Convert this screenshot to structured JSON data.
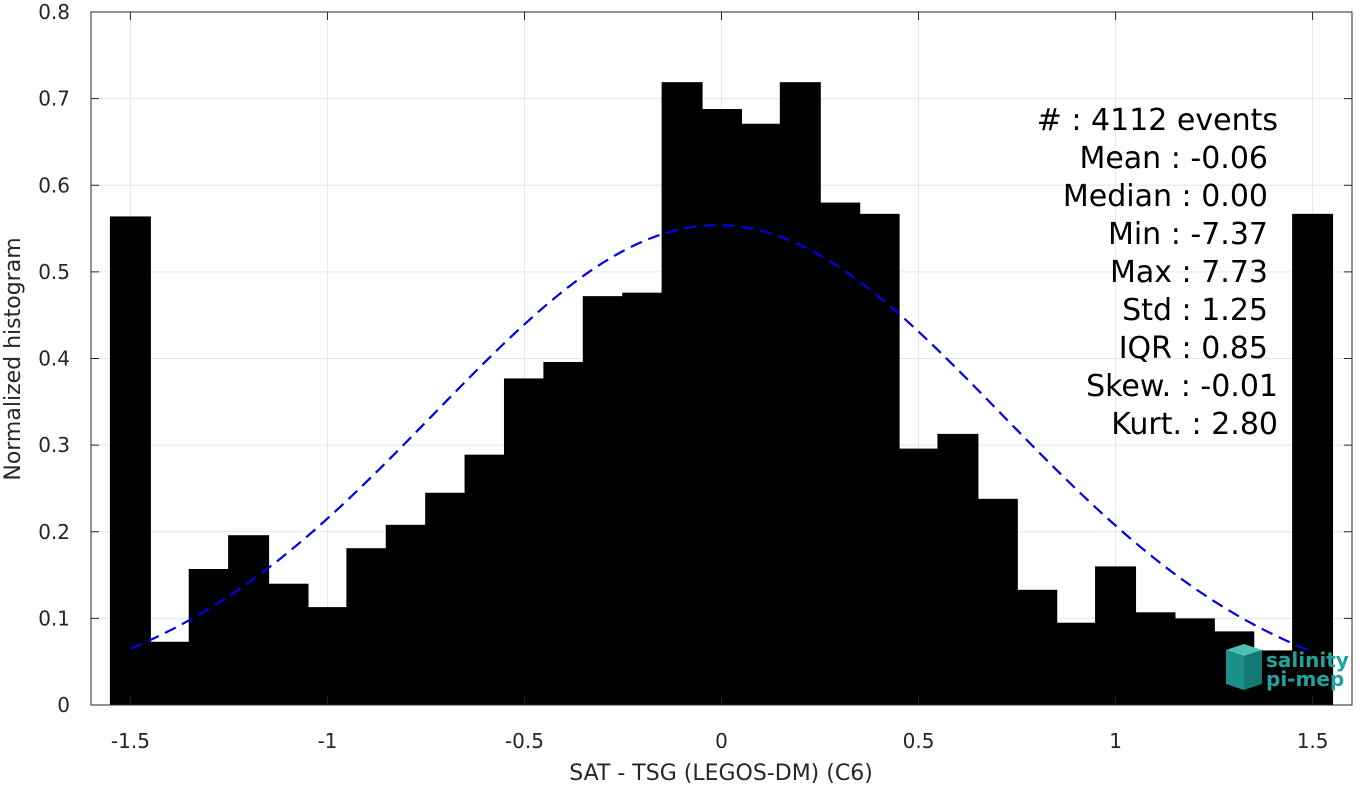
{
  "chart_data": {
    "type": "bar",
    "xlabel": "SAT - TSG (LEGOS-DM) (C6)",
    "ylabel": "Normalized histogram",
    "xlim": [
      -1.6,
      1.6
    ],
    "ylim": [
      0,
      0.8
    ],
    "grid": true,
    "x_ticks": [
      -1.5,
      -1,
      -0.5,
      0,
      0.5,
      1,
      1.5
    ],
    "x_tick_labels": [
      "-1.5",
      "-1",
      "-0.5",
      "0",
      "0.5",
      "1",
      "1.5"
    ],
    "y_ticks": [
      0,
      0.1,
      0.2,
      0.3,
      0.4,
      0.5,
      0.6,
      0.7,
      0.8
    ],
    "y_tick_labels": [
      "0",
      "0.1",
      "0.2",
      "0.3",
      "0.4",
      "0.5",
      "0.6",
      "0.7",
      "0.8"
    ],
    "bar_color": "#000000",
    "x": [
      -1.5,
      -1.4,
      -1.3,
      -1.2,
      -1.1,
      -1.0,
      -0.9,
      -0.8,
      -0.7,
      -0.6,
      -0.5,
      -0.4,
      -0.3,
      -0.2,
      -0.1,
      0.0,
      0.1,
      0.2,
      0.3,
      0.4,
      0.5,
      0.6,
      0.7,
      0.8,
      0.9,
      1.0,
      1.1,
      1.2,
      1.3,
      1.4,
      1.5
    ],
    "values": [
      0.564,
      0.073,
      0.157,
      0.196,
      0.14,
      0.113,
      0.181,
      0.208,
      0.245,
      0.289,
      0.377,
      0.396,
      0.472,
      0.476,
      0.719,
      0.688,
      0.671,
      0.719,
      0.58,
      0.567,
      0.296,
      0.313,
      0.238,
      0.133,
      0.095,
      0.16,
      0.107,
      0.1,
      0.085,
      0.063,
      0.567
    ],
    "fit_curve": {
      "type": "gaussian",
      "mean": -0.01,
      "std": 0.72,
      "peak": 0.554,
      "x_range": [
        -1.5,
        1.5
      ],
      "color": "#0000e6",
      "style": "dashed"
    },
    "annotations": [
      "#  : 4112 events",
      "Mean : -0.06",
      "Median : 0.00",
      "Min : -7.37",
      "Max : 7.73",
      "Std : 1.25",
      "IQR : 0.85",
      "Skew. : -0.01",
      "Kurt. : 2.80"
    ]
  },
  "logo": {
    "line1": "salinity",
    "line2": "pi-mep",
    "color": "#1fa39a"
  }
}
